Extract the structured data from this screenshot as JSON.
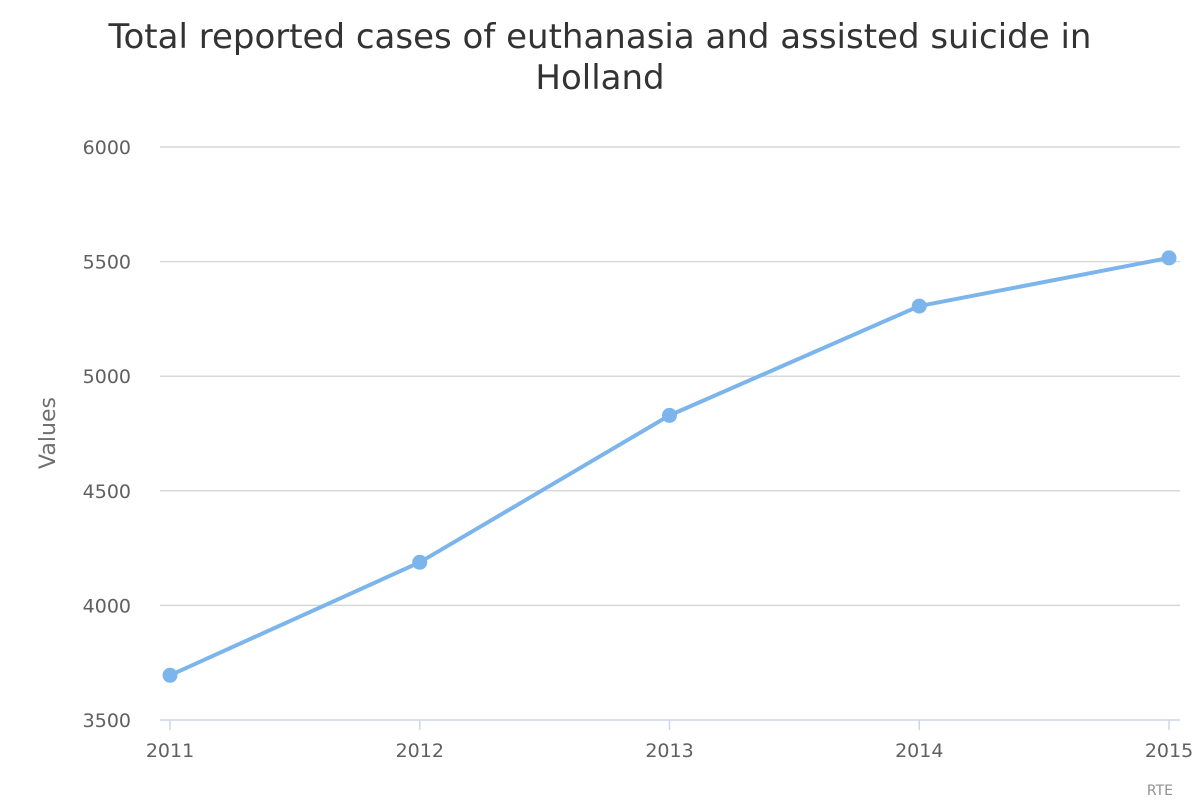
{
  "chart_data": {
    "type": "line",
    "title": "Total reported cases of euthanasia and assisted suicide in Holland",
    "title_lines": [
      "Total reported cases of euthanasia and assisted suicide in",
      "Holland"
    ],
    "xlabel": "",
    "ylabel": "Values",
    "categories": [
      "2011",
      "2012",
      "2013",
      "2014",
      "2015"
    ],
    "series": [
      {
        "values": [
          3695,
          4188,
          4829,
          5306,
          5516
        ]
      }
    ],
    "ylim": [
      3500,
      6000
    ],
    "yticks": [
      "3500",
      "4000",
      "4500",
      "5000",
      "5500",
      "6000"
    ],
    "grid": true,
    "legend": "none",
    "credit": "RTE"
  },
  "colors": {
    "series": "#7cb5ec",
    "grid": "#d8d8d8",
    "axis": "#ccd6eb"
  }
}
